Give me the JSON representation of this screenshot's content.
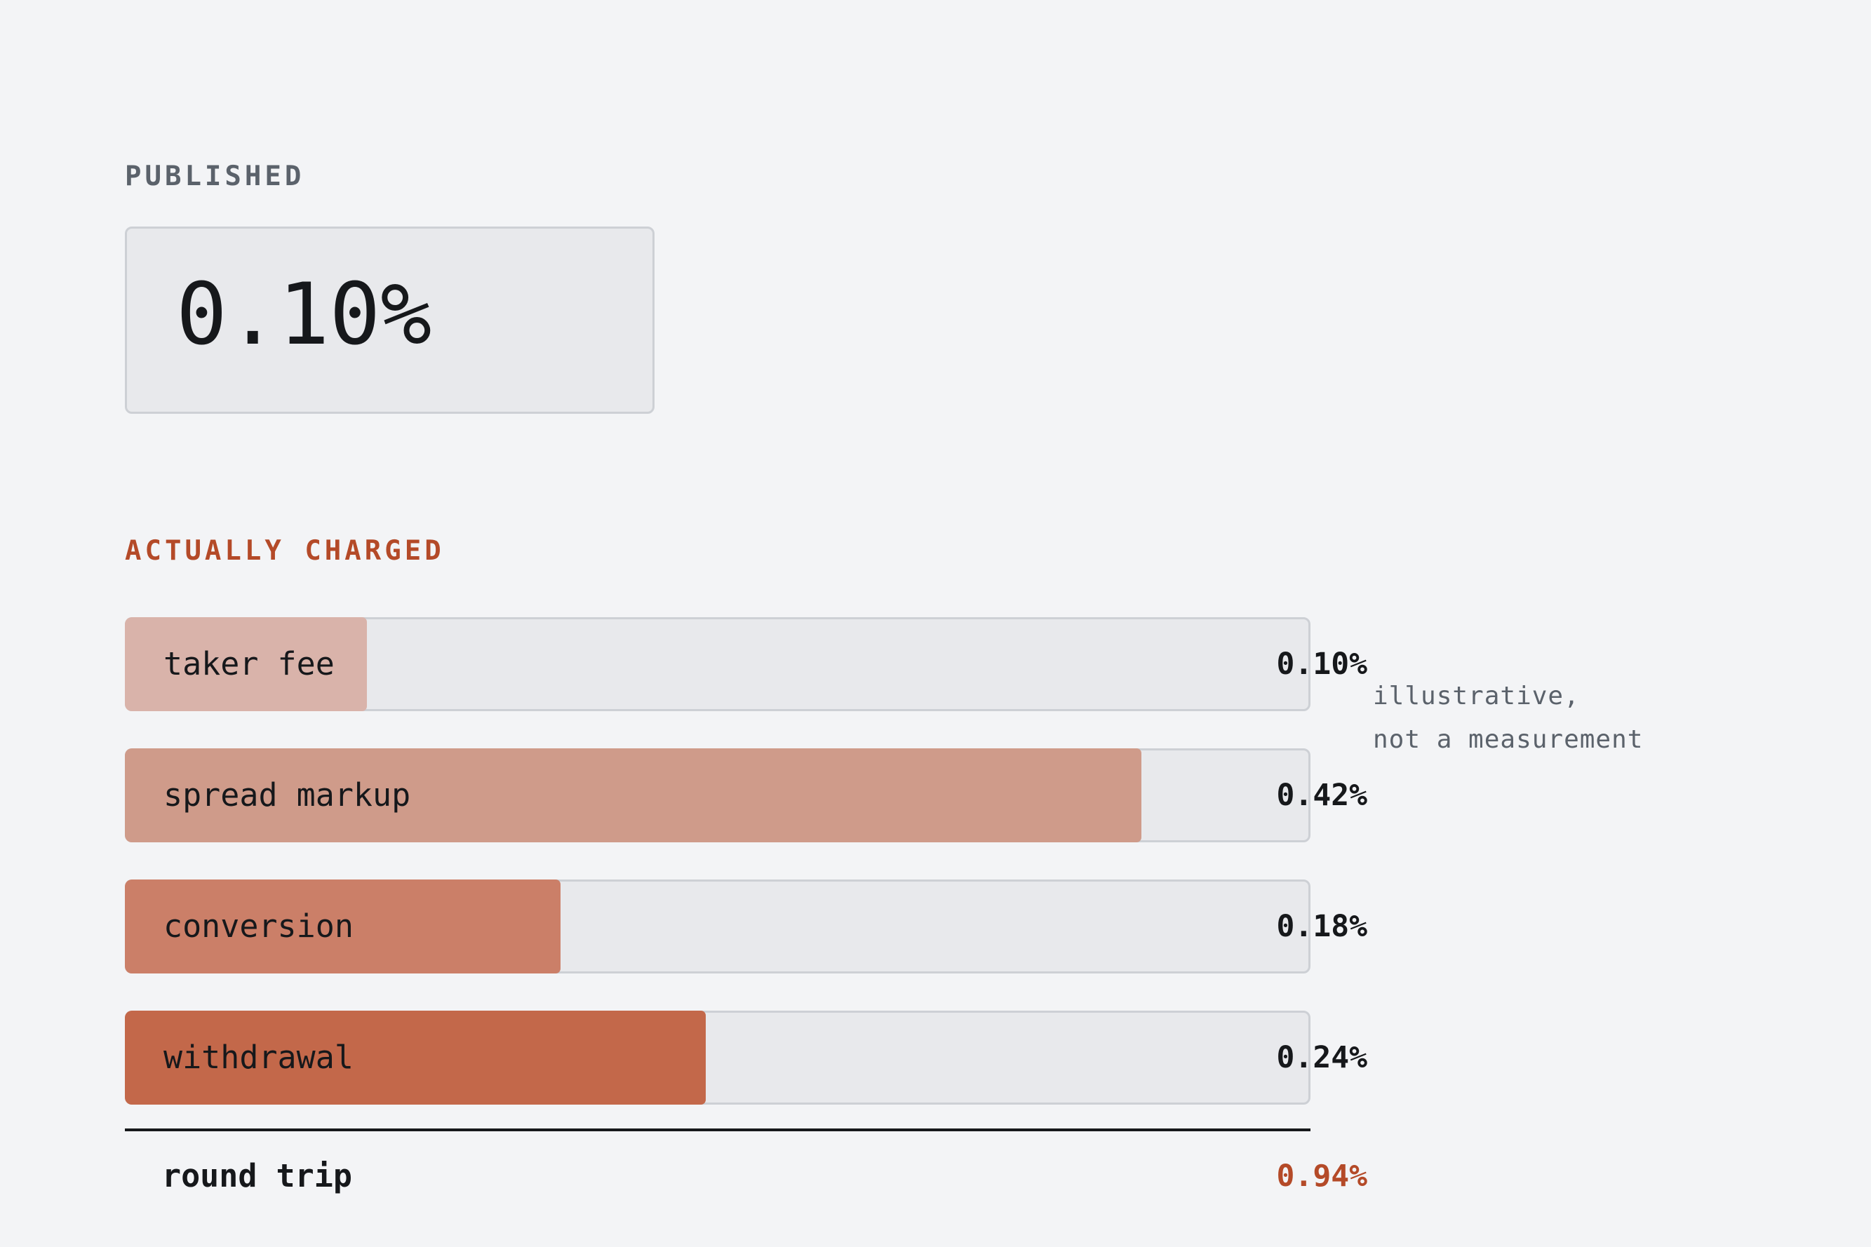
{
  "published": {
    "label": "PUBLISHED",
    "value": "0.10%"
  },
  "charged": {
    "label": "ACTUALLY CHARGED"
  },
  "annotation": {
    "line1": "illustrative,",
    "line2": "not a measurement"
  },
  "colors": {
    "accent": "#b44a28",
    "track": "#e8e9ec",
    "background": "#f3f4f6"
  },
  "chart_data": {
    "type": "bar",
    "orientation": "horizontal",
    "categories": [
      "taker fee",
      "spread markup",
      "conversion",
      "withdrawal"
    ],
    "values": [
      0.1,
      0.42,
      0.18,
      0.24
    ],
    "value_labels": [
      "0.10%",
      "0.42%",
      "0.18%",
      "0.24%"
    ],
    "bar_colors": [
      "#d9b3aa",
      "#cf9b8a",
      "#cb7f68",
      "#c3684a"
    ],
    "xlim": [
      0,
      0.49
    ],
    "total": {
      "label": "round trip",
      "value": 0.94,
      "value_label": "0.94%"
    }
  }
}
